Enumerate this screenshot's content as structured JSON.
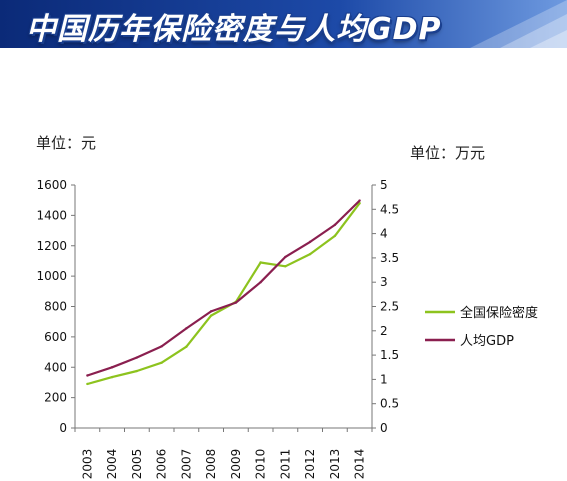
{
  "header": {
    "title": "中国历年保险密度与人均GDP"
  },
  "units": {
    "left": "单位：元",
    "right": "单位：万元"
  },
  "colors": {
    "banner_dark": "#0b2a78",
    "banner_light": "#3b74d6",
    "density": "#8dc31e",
    "gdp": "#8a1f4f"
  },
  "chart_data": {
    "type": "line",
    "title": "中国历年保险密度与人均GDP",
    "x": [
      "2003",
      "2004",
      "2005",
      "2006",
      "2007",
      "2008",
      "2009",
      "2010",
      "2011",
      "2012",
      "2013",
      "2014"
    ],
    "y_left": {
      "label": "单位：元",
      "range": [
        0,
        1600
      ],
      "ticks": [
        "0",
        "200",
        "400",
        "600",
        "800",
        "1000",
        "1200",
        "1400",
        "1600"
      ]
    },
    "y_right": {
      "label": "单位：万元",
      "range": [
        0,
        5
      ],
      "ticks": [
        "0",
        "0.5",
        "1",
        "1.5",
        "2",
        "2.5",
        "3",
        "3.5",
        "4",
        "4.5",
        "5"
      ]
    },
    "series": [
      {
        "name": "全国保险密度",
        "axis": "left",
        "color": "#8dc31e",
        "values": [
          290,
          335,
          375,
          430,
          535,
          740,
          830,
          1090,
          1065,
          1145,
          1265,
          1480
        ]
      },
      {
        "name": "人均GDP",
        "axis": "right",
        "color": "#8a1f4f",
        "values": [
          1.08,
          1.25,
          1.45,
          1.68,
          2.05,
          2.4,
          2.58,
          3.0,
          3.52,
          3.83,
          4.18,
          4.68
        ]
      }
    ],
    "grid": false,
    "legend": "right"
  }
}
